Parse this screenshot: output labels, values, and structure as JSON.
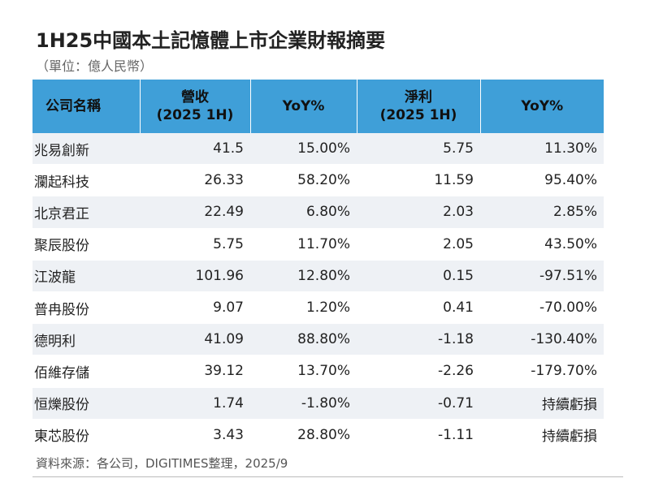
{
  "title": "1H25中國本土記憶體上市企業財報摘要",
  "unit": "（單位：億人民幣）",
  "source": "資料來源：各公司，DIGITIMES整理，2025/9",
  "colors": {
    "header_bg": "#3f9fd8",
    "row_alt_bg": "#eef1f5"
  },
  "chart_data": {
    "type": "table",
    "columns": [
      {
        "lines": [
          "公司名稱"
        ]
      },
      {
        "lines": [
          "營收",
          "(2025 1H)"
        ]
      },
      {
        "lines": [
          "YoY%"
        ]
      },
      {
        "lines": [
          "淨利",
          "(2025 1H)"
        ]
      },
      {
        "lines": [
          "YoY%"
        ]
      }
    ],
    "rows": [
      [
        "兆易創新",
        "41.5",
        "15.00%",
        "5.75",
        "11.30%"
      ],
      [
        "瀾起科技",
        "26.33",
        "58.20%",
        "11.59",
        "95.40%"
      ],
      [
        "北京君正",
        "22.49",
        "6.80%",
        "2.03",
        "2.85%"
      ],
      [
        "聚辰股份",
        "5.75",
        "11.70%",
        "2.05",
        "43.50%"
      ],
      [
        "江波龍",
        "101.96",
        "12.80%",
        "0.15",
        "-97.51%"
      ],
      [
        "普冉股份",
        "9.07",
        "1.20%",
        "0.41",
        "-70.00%"
      ],
      [
        "德明利",
        "41.09",
        "88.80%",
        "-1.18",
        "-130.40%"
      ],
      [
        "佰維存儲",
        "39.12",
        "13.70%",
        "-2.26",
        "-179.70%"
      ],
      [
        "恒爍股份",
        "1.74",
        "-1.80%",
        "-0.71",
        "持續虧損"
      ],
      [
        "東芯股份",
        "3.43",
        "28.80%",
        "-1.11",
        "持續虧損"
      ]
    ]
  }
}
